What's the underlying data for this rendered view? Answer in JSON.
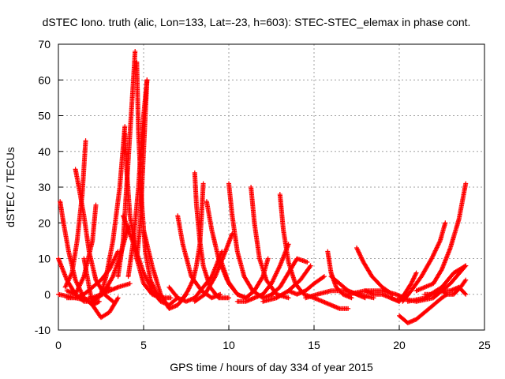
{
  "chart_data": {
    "type": "scatter",
    "title": "dSTEC Iono. truth (alic, Lon=133, Lat=-23, h=603): STEC-STEC_elemax in phase cont.",
    "xlabel": "GPS time / hours of day 334 of year 2015",
    "ylabel": "dSTEC  / TECUs",
    "xlim": [
      0,
      25
    ],
    "ylim": [
      -10,
      70
    ],
    "xticks": [
      0,
      5,
      10,
      15,
      20,
      25
    ],
    "yticks": [
      -10,
      0,
      10,
      20,
      30,
      40,
      50,
      60,
      70
    ],
    "grid": true,
    "marker": "+",
    "color": "#ff0000",
    "series": [
      {
        "x": [
          0.1,
          0.3,
          0.6,
          1.0,
          1.5,
          2.0,
          2.4
        ],
        "y": [
          26,
          20,
          12,
          4,
          -1,
          -3,
          -2
        ]
      },
      {
        "x": [
          0.0,
          0.5,
          1.0,
          1.5,
          2.0,
          2.5,
          3.0
        ],
        "y": [
          10,
          4,
          0,
          -2,
          -2,
          0,
          2
        ]
      },
      {
        "x": [
          0.0,
          0.5,
          1.0,
          1.5,
          2.0,
          2.5,
          3.0,
          3.5,
          4.2
        ],
        "y": [
          0,
          -0.5,
          -1,
          -1.5,
          -1,
          0,
          1,
          2,
          3
        ]
      },
      {
        "x": [
          1.0,
          1.2,
          1.5,
          1.8,
          2.2,
          2.7,
          3.2
        ],
        "y": [
          35,
          30,
          22,
          12,
          4,
          0,
          -2
        ]
      },
      {
        "x": [
          0.4,
          0.8,
          1.1,
          1.4,
          1.6
        ],
        "y": [
          2,
          6,
          15,
          28,
          43
        ]
      },
      {
        "x": [
          0.5,
          1.0,
          1.5,
          2.0,
          2.5,
          3.0,
          3.5
        ],
        "y": [
          -1,
          -1,
          0,
          2,
          4,
          7,
          12
        ]
      },
      {
        "x": [
          1.5,
          2.0,
          2.5,
          3.0,
          3.5
        ],
        "y": [
          10,
          -3,
          -6.5,
          -5,
          -1
        ]
      },
      {
        "x": [
          0.5,
          1.0,
          1.5,
          2.0,
          2.2
        ],
        "y": [
          1,
          0,
          5,
          15,
          25
        ]
      },
      {
        "x": [
          2.5,
          2.8,
          3.2,
          3.6,
          3.9
        ],
        "y": [
          0,
          5,
          15,
          30,
          47
        ]
      },
      {
        "x": [
          3.9,
          4.0,
          4.2,
          4.6,
          5.0,
          5.5,
          6.0,
          6.6
        ],
        "y": [
          45,
          35,
          22,
          10,
          3,
          0,
          -1,
          -1
        ]
      },
      {
        "x": [
          3.5,
          3.8,
          4.0,
          4.2,
          4.4,
          4.5
        ],
        "y": [
          5,
          15,
          30,
          45,
          60,
          68
        ]
      },
      {
        "x": [
          4.6,
          4.7,
          4.9,
          5.1,
          5.4,
          5.8,
          6.2
        ],
        "y": [
          65,
          45,
          25,
          12,
          4,
          0,
          -1
        ]
      },
      {
        "x": [
          4.1,
          4.4,
          4.7,
          4.9,
          5.1,
          5.2
        ],
        "y": [
          5,
          15,
          30,
          45,
          55,
          60
        ]
      },
      {
        "x": [
          5.2,
          5.1,
          5.0,
          4.9,
          4.8,
          4.6
        ],
        "y": [
          60,
          50,
          40,
          30,
          20,
          10
        ]
      },
      {
        "x": [
          3.8,
          4.5,
          5.0,
          5.5,
          6.0,
          6.5,
          7.0
        ],
        "y": [
          22,
          13,
          6,
          1,
          -2,
          -3,
          -1
        ]
      },
      {
        "x": [
          5.0,
          5.5,
          6.0,
          6.5,
          7.0,
          7.5
        ],
        "y": [
          18,
          8,
          0,
          -4,
          -3,
          0
        ]
      },
      {
        "x": [
          2.0,
          2.6,
          3.2,
          3.7,
          4.1
        ],
        "y": [
          -2,
          0,
          5,
          12,
          19
        ]
      },
      {
        "x": [
          7.0,
          7.3,
          7.8,
          8.4,
          9.0,
          9.5
        ],
        "y": [
          22,
          14,
          5,
          1,
          -1,
          0
        ]
      },
      {
        "x": [
          6.5,
          7.0,
          7.5,
          8.0,
          8.5,
          9.0,
          9.6
        ],
        "y": [
          2,
          -1,
          -2,
          -1,
          2,
          5,
          12
        ]
      },
      {
        "x": [
          8.0,
          8.1,
          8.3,
          8.5,
          8.9,
          9.4,
          10.0
        ],
        "y": [
          34,
          25,
          15,
          8,
          2,
          -1,
          -1
        ]
      },
      {
        "x": [
          8.5,
          8.4,
          8.3,
          8.1,
          7.9,
          7.6,
          7.2
        ],
        "y": [
          31,
          22,
          14,
          8,
          4,
          1,
          -2
        ]
      },
      {
        "x": [
          8.7,
          9.0,
          9.4,
          9.9,
          10.5,
          11.0
        ],
        "y": [
          26,
          18,
          10,
          4,
          0,
          -1
        ]
      },
      {
        "x": [
          8.0,
          8.6,
          9.2,
          9.8,
          10.2
        ],
        "y": [
          -2,
          0,
          5,
          12,
          17
        ]
      },
      {
        "x": [
          10.0,
          10.2,
          10.5,
          10.9,
          11.4,
          12.0,
          12.6
        ],
        "y": [
          31,
          22,
          12,
          5,
          1,
          -1,
          0
        ]
      },
      {
        "x": [
          11.3,
          11.5,
          11.8,
          12.2,
          12.8,
          13.5
        ],
        "y": [
          30,
          20,
          10,
          4,
          0,
          -1
        ]
      },
      {
        "x": [
          9.5,
          10.0,
          10.5,
          11.0,
          11.5,
          12.0,
          12.3
        ],
        "y": [
          10,
          3,
          0,
          -1,
          1,
          5,
          10
        ]
      },
      {
        "x": [
          10.5,
          11.0,
          11.5,
          12.0,
          12.5,
          13.0,
          13.5
        ],
        "y": [
          -2,
          -2,
          -1,
          0,
          3,
          8,
          14
        ]
      },
      {
        "x": [
          13.0,
          13.2,
          13.5,
          13.9,
          14.4,
          15.0
        ],
        "y": [
          28,
          18,
          9,
          3,
          0,
          -1
        ]
      },
      {
        "x": [
          12.5,
          13.0,
          13.5,
          14.0,
          14.6
        ],
        "y": [
          0,
          2,
          6,
          10,
          9
        ]
      },
      {
        "x": [
          12.0,
          12.8,
          13.5,
          14.2,
          14.8
        ],
        "y": [
          -2,
          -1,
          1,
          4,
          8
        ]
      },
      {
        "x": [
          13.5,
          14.0,
          14.5,
          15.0,
          15.6
        ],
        "y": [
          1,
          0,
          1,
          3,
          5
        ]
      },
      {
        "x": [
          15.8,
          16.0,
          16.3,
          16.7,
          17.2
        ],
        "y": [
          12,
          6,
          2,
          0,
          -1
        ]
      },
      {
        "x": [
          16.0,
          16.5,
          17.0,
          17.5,
          18.0
        ],
        "y": [
          5,
          3,
          1,
          0,
          -1
        ]
      },
      {
        "x": [
          14.5,
          15.2,
          16.0,
          16.8,
          17.6,
          18.5
        ],
        "y": [
          -1,
          0,
          1,
          1,
          0,
          -1
        ]
      },
      {
        "x": [
          15.0,
          15.5,
          16.0,
          16.5,
          17.0
        ],
        "y": [
          -1,
          -2,
          -3,
          -4,
          -4
        ]
      },
      {
        "x": [
          17.5,
          17.9,
          18.4,
          19.0,
          19.6
        ],
        "y": [
          13,
          9,
          5,
          2,
          0
        ]
      },
      {
        "x": [
          18.0,
          18.5,
          19.0,
          19.5,
          20.0,
          20.4
        ],
        "y": [
          1,
          0,
          0,
          -1,
          -2,
          0
        ]
      },
      {
        "x": [
          17.0,
          18.0,
          19.0,
          19.8,
          20.3
        ],
        "y": [
          0,
          1,
          1,
          0,
          -1
        ]
      },
      {
        "x": [
          19.5,
          20.0,
          20.3,
          20.7,
          21.0
        ],
        "y": [
          -1,
          -2,
          0,
          3,
          6
        ]
      },
      {
        "x": [
          20.0,
          20.5,
          21.0,
          21.5,
          22.0,
          22.5,
          22.8
        ],
        "y": [
          -6,
          -8,
          -7,
          -5,
          -3,
          -1,
          0
        ]
      },
      {
        "x": [
          20.2,
          20.7,
          21.3,
          21.9,
          22.4,
          22.7
        ],
        "y": [
          -2,
          1,
          5,
          10,
          15,
          20
        ]
      },
      {
        "x": [
          20.0,
          21.0,
          22.0,
          23.0,
          23.9
        ],
        "y": [
          -1,
          -2,
          -1,
          3,
          8
        ]
      },
      {
        "x": [
          20.5,
          21.5,
          22.5,
          23.2,
          23.9
        ],
        "y": [
          -2,
          -1,
          2,
          6,
          8
        ]
      },
      {
        "x": [
          21.0,
          22.0,
          22.5,
          23.0,
          23.5,
          23.9
        ],
        "y": [
          1,
          3,
          7,
          13,
          21,
          31
        ]
      },
      {
        "x": [
          22.5,
          22.8,
          23.2,
          23.6,
          23.9
        ],
        "y": [
          1,
          0,
          0,
          2,
          4
        ]
      },
      {
        "x": [
          21.5,
          22.0,
          22.5,
          23.0,
          23.5,
          23.9
        ],
        "y": [
          0,
          0,
          1,
          1,
          2,
          0
        ]
      }
    ]
  }
}
